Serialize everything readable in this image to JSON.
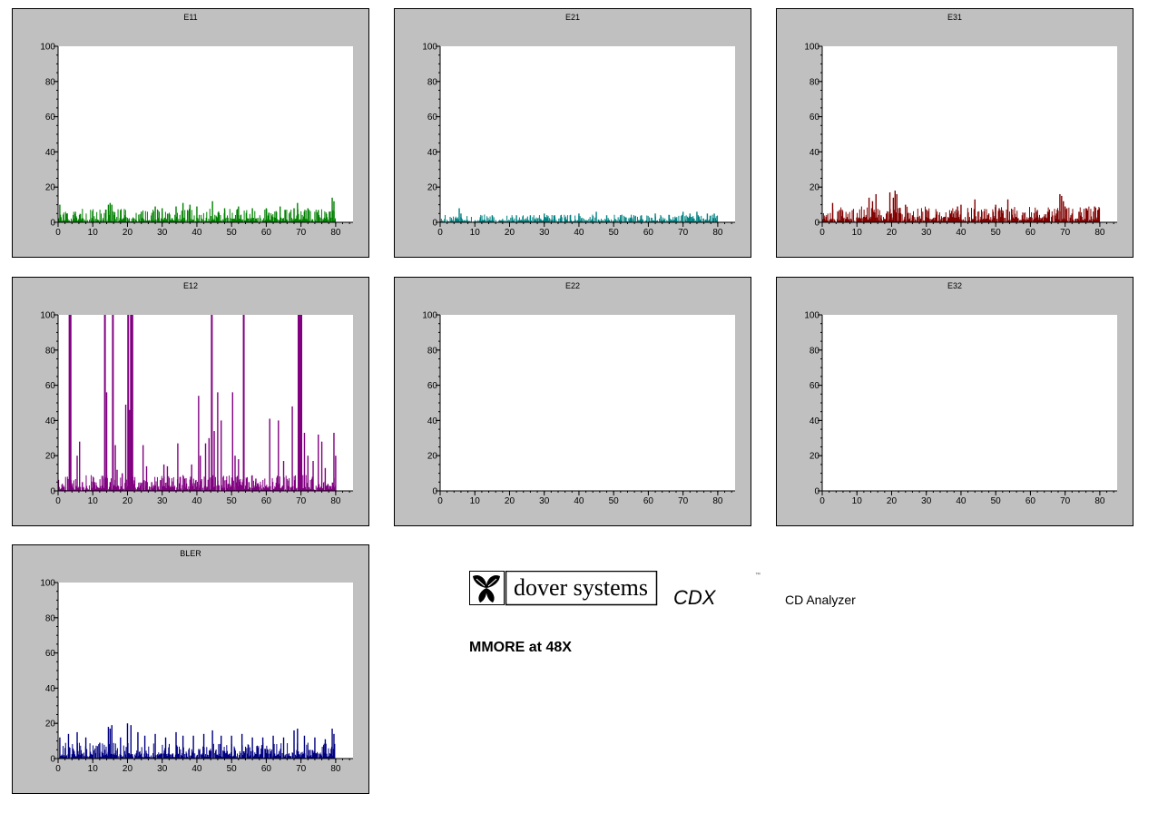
{
  "brand": {
    "logo_text": "dover systems",
    "product": "CDX",
    "trademark": "™",
    "product_name": "CD Analyzer",
    "subtitle": "MMORE at 48X"
  },
  "chart_data": [
    {
      "type": "bar",
      "title": "E11",
      "color": "#008000",
      "xlim": [
        0,
        85
      ],
      "ylim": [
        0,
        100
      ],
      "xticks": [
        0,
        10,
        20,
        30,
        40,
        50,
        60,
        70,
        80
      ],
      "yticks": [
        0,
        20,
        40,
        60,
        80,
        100
      ],
      "x_max": 80,
      "spikes": [
        [
          0.5,
          10
        ],
        [
          5,
          6
        ],
        [
          14.5,
          10
        ],
        [
          15,
          11
        ],
        [
          15.5,
          10
        ],
        [
          18,
          7
        ],
        [
          24,
          6
        ],
        [
          28,
          9
        ],
        [
          30,
          8
        ],
        [
          34,
          9
        ],
        [
          36,
          11
        ],
        [
          38,
          10
        ],
        [
          40,
          9
        ],
        [
          44.5,
          12
        ],
        [
          48,
          8
        ],
        [
          52,
          9
        ],
        [
          56,
          8
        ],
        [
          60,
          8
        ],
        [
          64,
          9
        ],
        [
          68,
          8
        ],
        [
          69,
          11
        ],
        [
          72,
          8
        ],
        [
          75,
          7
        ],
        [
          79,
          14
        ],
        [
          79.5,
          12
        ]
      ]
    },
    {
      "type": "bar",
      "title": "E21",
      "color": "#008080",
      "xlim": [
        0,
        85
      ],
      "ylim": [
        0,
        100
      ],
      "xticks": [
        0,
        10,
        20,
        30,
        40,
        50,
        60,
        70,
        80
      ],
      "yticks": [
        0,
        20,
        40,
        60,
        80,
        100
      ],
      "x_max": 80,
      "spikes": [
        [
          5.5,
          8
        ],
        [
          6,
          5
        ],
        [
          15,
          4
        ],
        [
          22,
          4
        ],
        [
          26,
          4
        ],
        [
          30,
          5
        ],
        [
          33,
          4
        ],
        [
          40,
          5
        ],
        [
          45,
          6
        ],
        [
          48,
          4
        ],
        [
          52,
          4
        ],
        [
          58,
          4
        ],
        [
          62,
          5
        ],
        [
          66,
          4
        ],
        [
          70,
          6
        ],
        [
          72,
          5
        ],
        [
          74,
          6
        ],
        [
          77,
          5
        ],
        [
          79,
          5
        ]
      ]
    },
    {
      "type": "bar",
      "title": "E31",
      "color": "#800000",
      "xlim": [
        0,
        85
      ],
      "ylim": [
        0,
        100
      ],
      "xticks": [
        0,
        10,
        20,
        30,
        40,
        50,
        60,
        70,
        80
      ],
      "yticks": [
        0,
        20,
        40,
        60,
        80,
        100
      ],
      "x_max": 80,
      "spikes": [
        [
          3,
          11
        ],
        [
          4.5,
          6
        ],
        [
          5,
          7
        ],
        [
          7,
          2
        ],
        [
          13.5,
          14
        ],
        [
          14.5,
          12
        ],
        [
          15.5,
          16
        ],
        [
          17,
          4
        ],
        [
          18.5,
          5
        ],
        [
          19.5,
          17
        ],
        [
          20.5,
          14
        ],
        [
          21,
          18
        ],
        [
          21.5,
          16
        ],
        [
          24,
          10
        ],
        [
          26,
          4
        ],
        [
          30,
          3
        ],
        [
          33,
          4
        ],
        [
          35,
          3
        ],
        [
          37,
          5
        ],
        [
          39,
          9
        ],
        [
          40,
          10
        ],
        [
          42,
          5
        ],
        [
          44,
          13
        ],
        [
          46,
          6
        ],
        [
          48,
          5
        ],
        [
          50,
          10
        ],
        [
          51,
          8
        ],
        [
          53.5,
          13
        ],
        [
          56,
          3
        ],
        [
          60,
          3
        ],
        [
          62,
          7
        ],
        [
          65,
          6
        ],
        [
          67.5,
          5
        ],
        [
          68.5,
          16
        ],
        [
          69,
          15
        ],
        [
          69.5,
          12
        ],
        [
          70,
          9
        ],
        [
          72,
          5
        ],
        [
          74,
          6
        ],
        [
          76,
          8
        ],
        [
          78.5,
          9
        ]
      ]
    },
    {
      "type": "bar",
      "title": "E12",
      "color": "#800080",
      "xlim": [
        0,
        85
      ],
      "ylim": [
        0,
        100
      ],
      "xticks": [
        0,
        10,
        20,
        30,
        40,
        50,
        60,
        70,
        80
      ],
      "yticks": [
        0,
        20,
        40,
        60,
        80,
        100
      ],
      "x_max": 80,
      "spikes": [
        [
          3.3,
          100
        ],
        [
          3.6,
          100
        ],
        [
          5.5,
          20
        ],
        [
          6.2,
          28
        ],
        [
          7,
          5
        ],
        [
          10.5,
          5
        ],
        [
          13.5,
          100
        ],
        [
          14,
          56
        ],
        [
          15,
          5
        ],
        [
          15.8,
          100
        ],
        [
          16.5,
          26
        ],
        [
          17,
          12
        ],
        [
          18.5,
          10
        ],
        [
          19.5,
          49
        ],
        [
          20.2,
          100
        ],
        [
          20.6,
          46
        ],
        [
          21,
          100
        ],
        [
          21.4,
          100
        ],
        [
          22,
          6
        ],
        [
          24.5,
          26
        ],
        [
          25.5,
          14
        ],
        [
          27,
          5
        ],
        [
          29.5,
          6
        ],
        [
          30.5,
          15
        ],
        [
          31.5,
          14
        ],
        [
          34.5,
          27
        ],
        [
          36.5,
          7
        ],
        [
          38.5,
          15
        ],
        [
          40.5,
          54
        ],
        [
          41,
          20
        ],
        [
          42.5,
          27
        ],
        [
          43.5,
          30
        ],
        [
          44.3,
          100
        ],
        [
          45,
          34
        ],
        [
          46,
          56
        ],
        [
          47,
          40
        ],
        [
          49,
          4
        ],
        [
          50.3,
          56
        ],
        [
          51,
          20
        ],
        [
          52,
          18
        ],
        [
          53.5,
          100
        ],
        [
          55,
          5
        ],
        [
          57,
          7
        ],
        [
          61,
          41
        ],
        [
          63.5,
          40
        ],
        [
          65,
          17
        ],
        [
          67.5,
          48
        ],
        [
          69.3,
          100
        ],
        [
          69.7,
          100
        ],
        [
          70.1,
          100
        ],
        [
          71,
          33
        ],
        [
          72,
          20
        ],
        [
          73.5,
          17
        ],
        [
          75,
          32
        ],
        [
          76,
          28
        ],
        [
          77,
          13
        ],
        [
          79.5,
          33
        ],
        [
          80,
          20
        ]
      ]
    },
    {
      "type": "bar",
      "title": "E22",
      "color": "#000080",
      "xlim": [
        0,
        85
      ],
      "ylim": [
        0,
        100
      ],
      "xticks": [
        0,
        10,
        20,
        30,
        40,
        50,
        60,
        70,
        80
      ],
      "yticks": [
        0,
        20,
        40,
        60,
        80,
        100
      ],
      "x_max": 0,
      "spikes": []
    },
    {
      "type": "bar",
      "title": "E32",
      "color": "#000080",
      "xlim": [
        0,
        85
      ],
      "ylim": [
        0,
        100
      ],
      "xticks": [
        0,
        10,
        20,
        30,
        40,
        50,
        60,
        70,
        80
      ],
      "yticks": [
        0,
        20,
        40,
        60,
        80,
        100
      ],
      "x_max": 0,
      "spikes": []
    },
    {
      "type": "bar",
      "title": "BLER",
      "color": "#000080",
      "xlim": [
        0,
        85
      ],
      "ylim": [
        0,
        100
      ],
      "xticks": [
        0,
        10,
        20,
        30,
        40,
        50,
        60,
        70,
        80
      ],
      "yticks": [
        0,
        20,
        40,
        60,
        80,
        100
      ],
      "x_max": 80,
      "spikes": [
        [
          0.5,
          12
        ],
        [
          3,
          14
        ],
        [
          5.5,
          15
        ],
        [
          8,
          12
        ],
        [
          12,
          9
        ],
        [
          14.5,
          18
        ],
        [
          15,
          17
        ],
        [
          15.5,
          19
        ],
        [
          18,
          12
        ],
        [
          20,
          20
        ],
        [
          21,
          19
        ],
        [
          23,
          15
        ],
        [
          25,
          13
        ],
        [
          28,
          14
        ],
        [
          31,
          12
        ],
        [
          34,
          15
        ],
        [
          36,
          13
        ],
        [
          39,
          13
        ],
        [
          42,
          14
        ],
        [
          44.5,
          16
        ],
        [
          47,
          13
        ],
        [
          50,
          13
        ],
        [
          53,
          14
        ],
        [
          56,
          12
        ],
        [
          59,
          12
        ],
        [
          62,
          13
        ],
        [
          65,
          12
        ],
        [
          68,
          16
        ],
        [
          69,
          17
        ],
        [
          71,
          13
        ],
        [
          74,
          12
        ],
        [
          77,
          11
        ],
        [
          79,
          17
        ],
        [
          79.5,
          14
        ]
      ]
    }
  ]
}
